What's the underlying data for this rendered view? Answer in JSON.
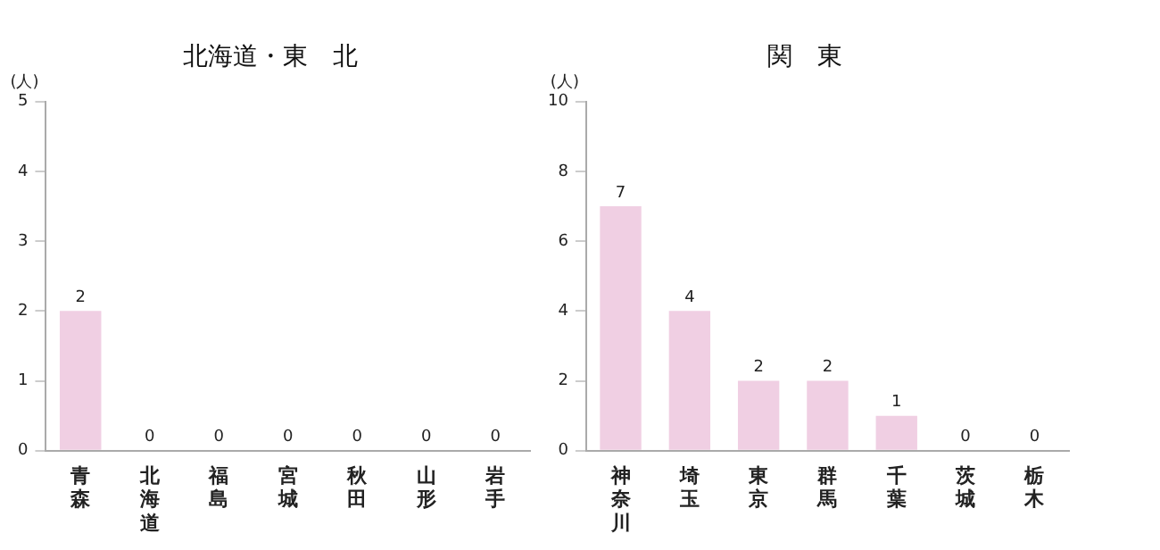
{
  "chart_data": [
    {
      "type": "bar",
      "title": "北海道・東　北",
      "ylabel": "(人)",
      "categories": [
        "青森",
        "北海道",
        "福島",
        "宮城",
        "秋田",
        "山形",
        "岩手"
      ],
      "values": [
        2,
        0,
        0,
        0,
        0,
        0,
        0
      ],
      "color": "#f0cfe3",
      "ylim": [
        0,
        5
      ],
      "yticks": [
        0,
        1,
        2,
        3,
        4,
        5
      ],
      "data_labels": true,
      "grid": false,
      "legend": false
    },
    {
      "type": "bar",
      "title": "関　東",
      "ylabel": "(人)",
      "categories": [
        "神奈川",
        "埼玉",
        "東京",
        "群馬",
        "千葉",
        "茨城",
        "栃木"
      ],
      "values": [
        7,
        4,
        2,
        2,
        1,
        0,
        0
      ],
      "color": "#f0cfe3",
      "ylim": [
        0,
        10
      ],
      "yticks": [
        0,
        2,
        4,
        6,
        8,
        10
      ],
      "data_labels": true,
      "grid": false,
      "legend": false
    }
  ]
}
